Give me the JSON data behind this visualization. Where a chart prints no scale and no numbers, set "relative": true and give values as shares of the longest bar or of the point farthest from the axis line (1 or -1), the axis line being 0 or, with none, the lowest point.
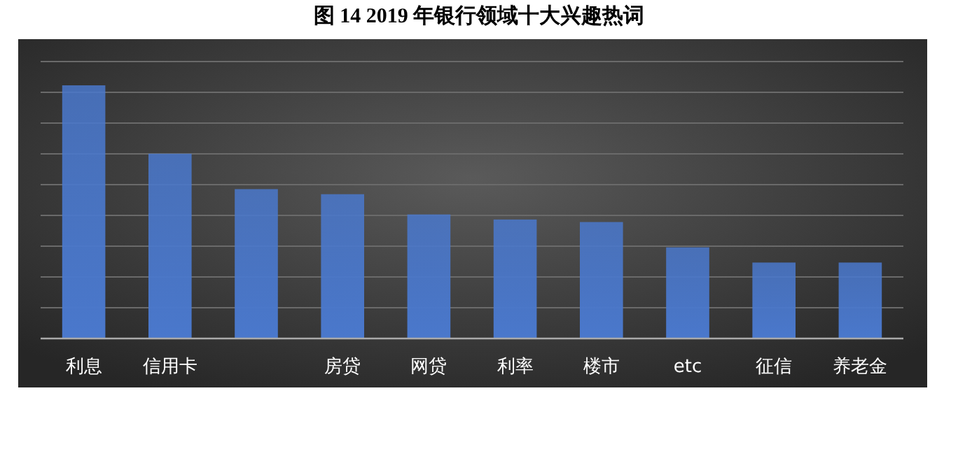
{
  "chart_data": {
    "type": "bar",
    "title": "图 14 2019 年银行领域十大兴趣热词",
    "categories": [
      "利息",
      "信用卡",
      null,
      "房贷",
      "网贷",
      "利率",
      "楼市",
      "etc",
      "征信",
      "养老金"
    ],
    "values": [
      1,
      0.73,
      0.59,
      0.57,
      0.49,
      0.47,
      0.46,
      0.36,
      0.3,
      0.3
    ],
    "color": "#4a78cc",
    "relative": true,
    "grid": "y"
  }
}
